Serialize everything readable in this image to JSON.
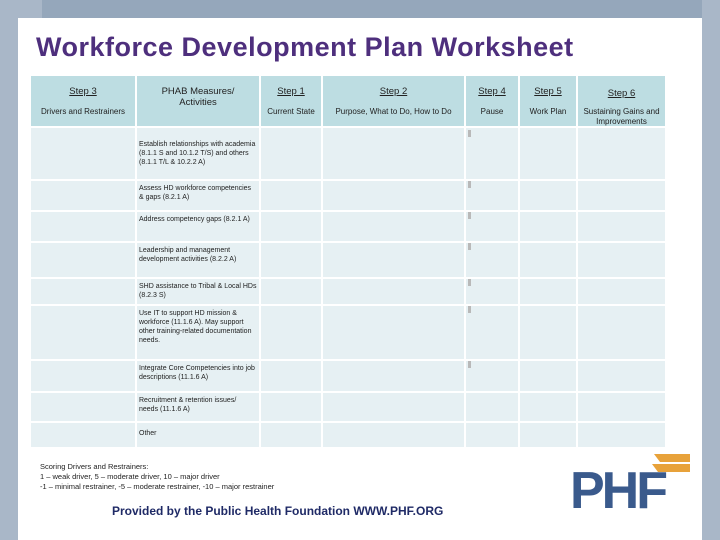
{
  "title": "Workforce Development Plan Worksheet",
  "headers": [
    {
      "label": "Step 3",
      "sub": "Drivers and Restrainers"
    },
    {
      "label": "PHAB Measures/ Activities",
      "sub": ""
    },
    {
      "label": "Step 1",
      "sub": "Current State"
    },
    {
      "label": "Step 2",
      "sub": "Purpose, What to Do, How to Do"
    },
    {
      "label": "Step 4",
      "sub": "Pause"
    },
    {
      "label": "Step 5",
      "sub": "Work Plan"
    },
    {
      "label": "Step 6",
      "sub": "Sustaining Gains and Improvements"
    }
  ],
  "measures": [
    "Establish relationships with academia (8.1.1 S and 10.1.2 T/S) and others (8.1.1 T/L & 10.2.2 A)",
    "Assess HD workforce competencies & gaps (8.2.1 A)",
    "Address competency gaps (8.2.1 A)",
    "Leadership and management development activities (8.2.2 A)",
    "SHD assistance to Tribal & Local HDs (8.2.3 S)",
    "Use IT to support HD mission & workforce (11.1.6 A). May support other training-related documentation needs.",
    "Integrate Core Competencies into job descriptions (11.1.6 A)",
    "Recruitment & retention issues/ needs (11.1.6 A)",
    "Other"
  ],
  "scoring": {
    "heading": "Scoring Drivers and Restrainers:",
    "line1": "1 – weak driver, 5 – moderate driver, 10 – major driver",
    "line2": "-1 – minimal restrainer, -5 – moderate restrainer, -10 – major restrainer"
  },
  "footer": "Provided by the Public Health Foundation WWW.PHF.ORG",
  "logo_text": "PHF",
  "colors": {
    "title": "#4e2f7d",
    "header_cell": "#bddde2",
    "body_cell": "#e6f0f3",
    "logo_blue": "#3a5a8c",
    "logo_orange": "#e8a23a"
  }
}
